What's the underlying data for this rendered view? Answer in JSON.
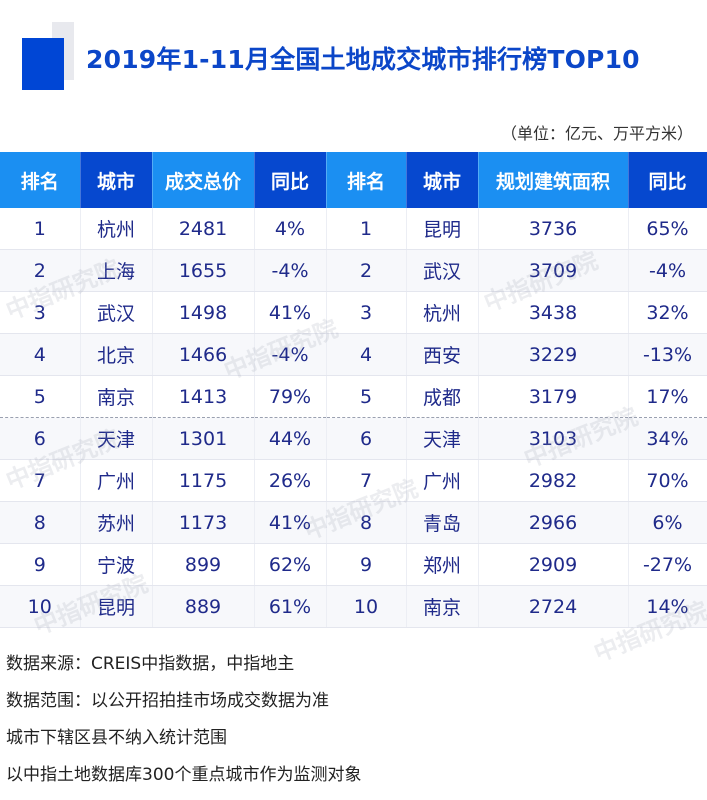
{
  "header": {
    "title": "2019年1-11月全国土地成交城市排行榜TOP10",
    "unit": "（单位：亿元、万平方米）"
  },
  "table": {
    "headers": [
      "排名",
      "城市",
      "成交总价",
      "同比",
      "排名",
      "城市",
      "规划建筑面积",
      "同比"
    ],
    "rows": [
      [
        "1",
        "杭州",
        "2481",
        "4%",
        "1",
        "昆明",
        "3736",
        "65%"
      ],
      [
        "2",
        "上海",
        "1655",
        "-4%",
        "2",
        "武汉",
        "3709",
        "-4%"
      ],
      [
        "3",
        "武汉",
        "1498",
        "41%",
        "3",
        "杭州",
        "3438",
        "32%"
      ],
      [
        "4",
        "北京",
        "1466",
        "-4%",
        "4",
        "西安",
        "3229",
        "-13%"
      ],
      [
        "5",
        "南京",
        "1413",
        "79%",
        "5",
        "成都",
        "3179",
        "17%"
      ],
      [
        "6",
        "天津",
        "1301",
        "44%",
        "6",
        "天津",
        "3103",
        "34%"
      ],
      [
        "7",
        "广州",
        "1175",
        "26%",
        "7",
        "广州",
        "2982",
        "70%"
      ],
      [
        "8",
        "苏州",
        "1173",
        "41%",
        "8",
        "青岛",
        "2966",
        "6%"
      ],
      [
        "9",
        "宁波",
        "899",
        "62%",
        "9",
        "郑州",
        "2909",
        "-27%"
      ],
      [
        "10",
        "昆明",
        "889",
        "61%",
        "10",
        "南京",
        "2724",
        "14%"
      ]
    ]
  },
  "watermark": "中指研究院",
  "notes": [
    "数据来源：CREIS中指数据，中指地主",
    "数据范围：以公开招拍挂市场成交数据为准",
    "城市下辖区县不纳入统计范围",
    "以中指土地数据库300个重点城市作为监测对象"
  ],
  "colors": {
    "title": "#0b46c8",
    "header_light": "#1b8ff2",
    "header_dark": "#0648cf",
    "cell_text": "#1f2a8a"
  }
}
